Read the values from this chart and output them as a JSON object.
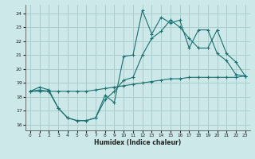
{
  "xlabel": "Humidex (Indice chaleur)",
  "bg_color": "#cce8e8",
  "grid_color": "#aacccc",
  "line_color": "#1a7070",
  "xlim": [
    -0.5,
    23.5
  ],
  "ylim": [
    15.6,
    24.6
  ],
  "xticks": [
    0,
    1,
    2,
    3,
    4,
    5,
    6,
    7,
    8,
    9,
    10,
    11,
    12,
    13,
    14,
    15,
    16,
    17,
    18,
    19,
    20,
    21,
    22,
    23
  ],
  "yticks": [
    16,
    17,
    18,
    19,
    20,
    21,
    22,
    23,
    24
  ],
  "line1_x": [
    0,
    1,
    2,
    3,
    4,
    5,
    6,
    7,
    8,
    9,
    10,
    11,
    12,
    13,
    14,
    15,
    16,
    17,
    18,
    19,
    20,
    21,
    22,
    23
  ],
  "line1_y": [
    18.4,
    18.7,
    18.5,
    17.2,
    16.5,
    16.3,
    16.3,
    16.5,
    18.1,
    17.6,
    20.9,
    21.0,
    24.2,
    22.5,
    23.7,
    23.3,
    23.5,
    21.5,
    22.8,
    22.8,
    21.1,
    20.6,
    19.6,
    19.5
  ],
  "line2_x": [
    0,
    1,
    2,
    3,
    4,
    5,
    6,
    7,
    8,
    9,
    10,
    11,
    12,
    13,
    14,
    15,
    16,
    17,
    18,
    19,
    20,
    21,
    22,
    23
  ],
  "line2_y": [
    18.4,
    18.5,
    18.4,
    17.2,
    16.5,
    16.3,
    16.3,
    16.5,
    17.8,
    18.4,
    19.2,
    19.4,
    21.0,
    22.2,
    22.7,
    23.5,
    23.0,
    22.2,
    21.5,
    21.5,
    22.8,
    21.1,
    20.5,
    19.5
  ],
  "line3_x": [
    0,
    1,
    2,
    3,
    4,
    5,
    6,
    7,
    8,
    9,
    10,
    11,
    12,
    13,
    14,
    15,
    16,
    17,
    18,
    19,
    20,
    21,
    22,
    23
  ],
  "line3_y": [
    18.4,
    18.4,
    18.4,
    18.4,
    18.4,
    18.4,
    18.4,
    18.5,
    18.6,
    18.7,
    18.8,
    18.9,
    19.0,
    19.1,
    19.2,
    19.3,
    19.3,
    19.4,
    19.4,
    19.4,
    19.4,
    19.4,
    19.4,
    19.5
  ]
}
